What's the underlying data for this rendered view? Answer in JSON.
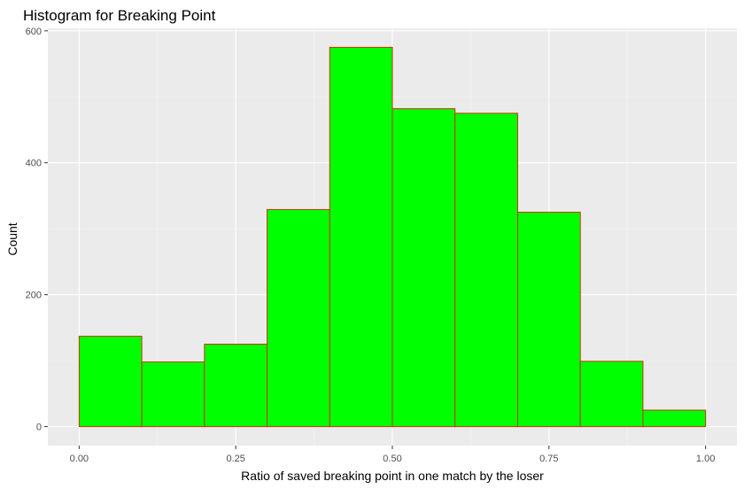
{
  "chart_data": {
    "type": "bar",
    "title": "Histogram for Breaking Point",
    "xlabel": "Ratio of saved breaking point in one match by the loser",
    "ylabel": "Count",
    "bins": [
      {
        "x0": 0.0,
        "x1": 0.1,
        "count": 137
      },
      {
        "x0": 0.1,
        "x1": 0.2,
        "count": 98
      },
      {
        "x0": 0.2,
        "x1": 0.3,
        "count": 125
      },
      {
        "x0": 0.3,
        "x1": 0.4,
        "count": 329
      },
      {
        "x0": 0.4,
        "x1": 0.5,
        "count": 575
      },
      {
        "x0": 0.5,
        "x1": 0.6,
        "count": 482
      },
      {
        "x0": 0.6,
        "x1": 0.7,
        "count": 475
      },
      {
        "x0": 0.7,
        "x1": 0.8,
        "count": 325
      },
      {
        "x0": 0.8,
        "x1": 0.9,
        "count": 99
      },
      {
        "x0": 0.9,
        "x1": 1.0,
        "count": 25
      }
    ],
    "xlim": [
      -0.05,
      1.05
    ],
    "ylim": [
      -28.75,
      603.75
    ],
    "x_ticks": [
      0,
      0.25,
      0.5,
      0.75,
      1
    ],
    "x_tick_labels": [
      "0.00",
      "0.25",
      "0.50",
      "0.75",
      "1.00"
    ],
    "y_ticks": [
      0,
      200,
      400,
      600
    ],
    "y_tick_labels": [
      "0",
      "200",
      "400",
      "600"
    ],
    "grid": true,
    "colors": {
      "panel_background": "#ebebeb",
      "grid_major": "#ffffff",
      "grid_minor": "#f5f5f5",
      "bar_fill": "#00ff00",
      "bar_outline": "#cc3300"
    }
  }
}
